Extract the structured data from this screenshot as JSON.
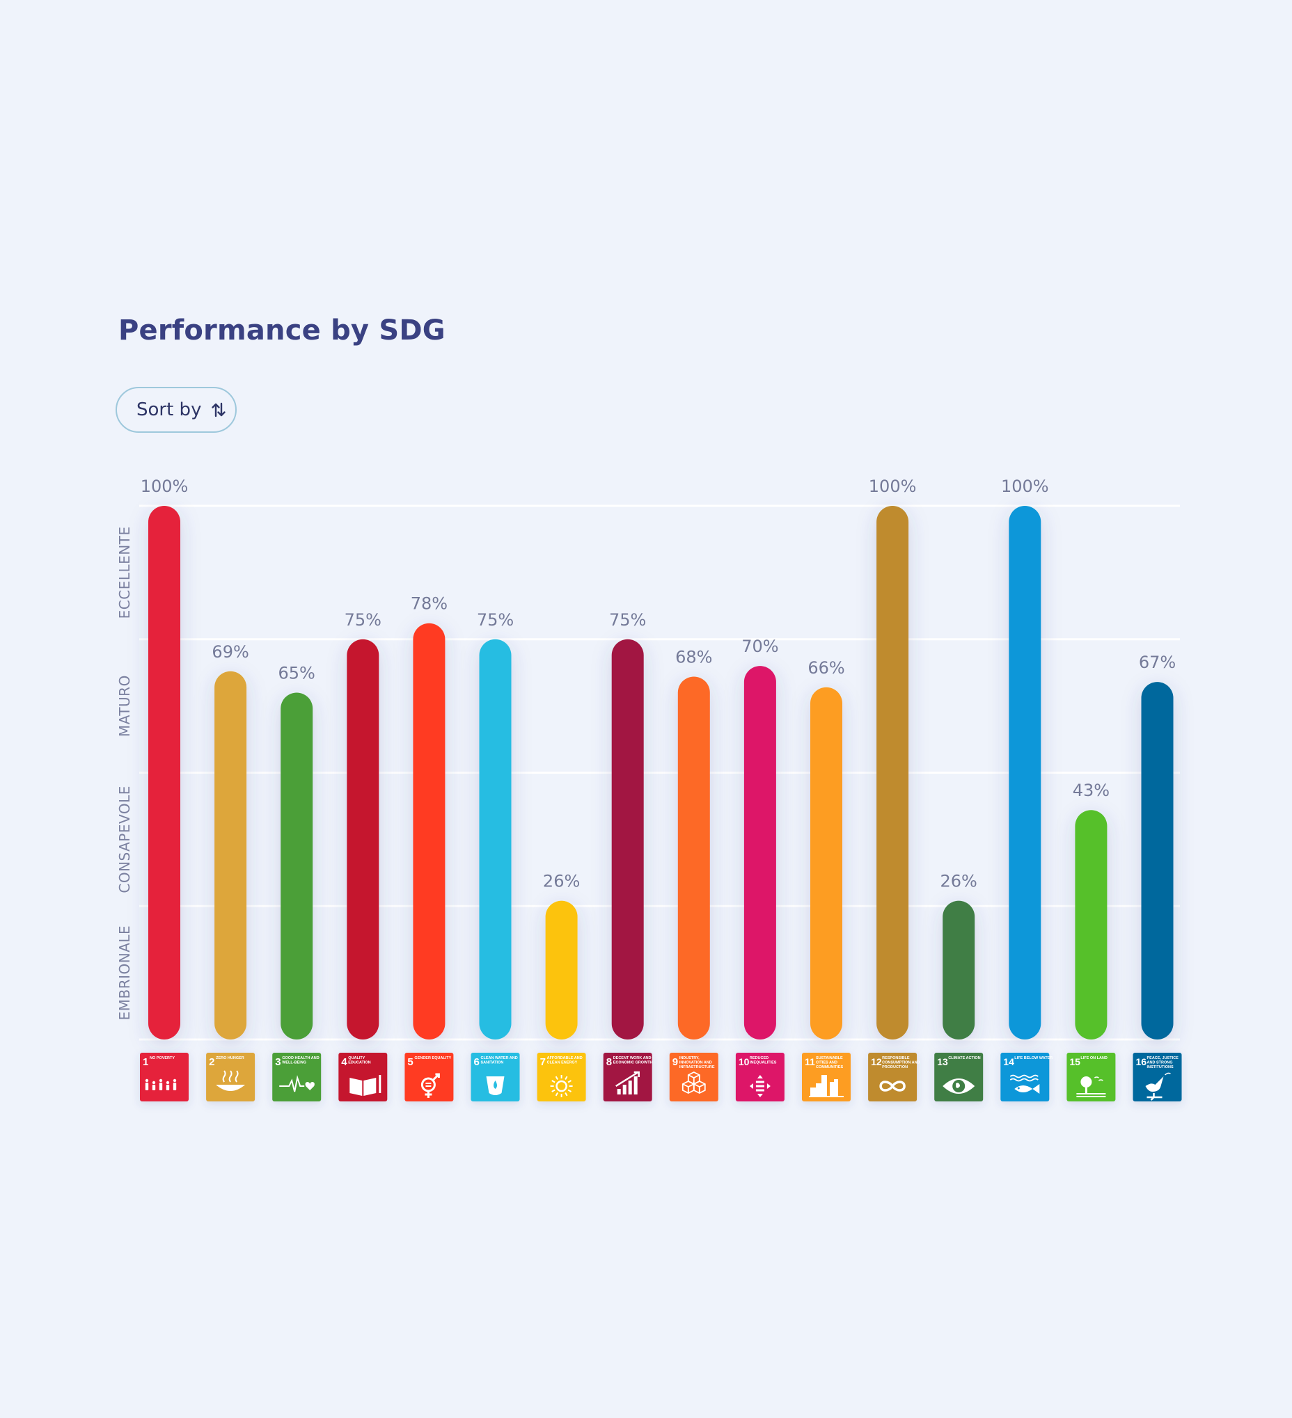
{
  "header": {
    "title": "Performance by SDG"
  },
  "toolbar": {
    "sort_label": "Sort by",
    "sort_icon": "sort-arrows-icon"
  },
  "chart_data": {
    "type": "bar",
    "title": "Performance by SDG",
    "xlabel": "",
    "ylabel": "",
    "ylim": [
      0,
      100
    ],
    "grid": true,
    "y_levels": [
      "EMBRIONALE",
      "CONSAPEVOLE",
      "MATURO",
      "ECCELLENTE"
    ],
    "categories": [
      {
        "num": "1",
        "name": "NO POVERTY",
        "color": "#e5243b",
        "icon": "family-icon"
      },
      {
        "num": "2",
        "name": "ZERO HUNGER",
        "color": "#dda63a",
        "icon": "bowl-icon"
      },
      {
        "num": "3",
        "name": "GOOD HEALTH AND WELL-BEING",
        "color": "#4c9f38",
        "icon": "heartbeat-icon"
      },
      {
        "num": "4",
        "name": "QUALITY EDUCATION",
        "color": "#c5192d",
        "icon": "book-icon"
      },
      {
        "num": "5",
        "name": "GENDER EQUALITY",
        "color": "#ff3a21",
        "icon": "gender-icon"
      },
      {
        "num": "6",
        "name": "CLEAN WATER AND SANITATION",
        "color": "#26bde2",
        "icon": "water-icon"
      },
      {
        "num": "7",
        "name": "AFFORDABLE AND CLEAN ENERGY",
        "color": "#fcc30b",
        "icon": "sun-icon"
      },
      {
        "num": "8",
        "name": "DECENT WORK AND ECONOMIC GROWTH",
        "color": "#a21942",
        "icon": "growth-icon"
      },
      {
        "num": "9",
        "name": "INDUSTRY, INNOVATION AND INFRASTRUCTURE",
        "color": "#fd6925",
        "icon": "cubes-icon"
      },
      {
        "num": "10",
        "name": "REDUCED INEQUALITIES",
        "color": "#dd1367",
        "icon": "equality-icon"
      },
      {
        "num": "11",
        "name": "SUSTAINABLE CITIES AND COMMUNITIES",
        "color": "#fd9d24",
        "icon": "city-icon"
      },
      {
        "num": "12",
        "name": "RESPONSIBLE CONSUMPTION AND PRODUCTION",
        "color": "#bf8b2e",
        "icon": "infinity-icon"
      },
      {
        "num": "13",
        "name": "CLIMATE ACTION",
        "color": "#3f7e44",
        "icon": "eye-globe-icon"
      },
      {
        "num": "14",
        "name": "LIFE BELOW WATER",
        "color": "#0a97d9",
        "icon": "fish-icon"
      },
      {
        "num": "15",
        "name": "LIFE ON LAND",
        "color": "#56c02b",
        "icon": "tree-icon"
      },
      {
        "num": "16",
        "name": "PEACE, JUSTICE AND STRONG INSTITUTIONS",
        "color": "#00689d",
        "icon": "dove-icon"
      }
    ],
    "values": [
      100,
      69,
      65,
      75,
      78,
      75,
      26,
      75,
      68,
      70,
      66,
      100,
      26,
      100,
      43,
      67
    ],
    "value_labels": [
      "100%",
      "69%",
      "65%",
      "75%",
      "78%",
      "75%",
      "26%",
      "75%",
      "68%",
      "70%",
      "66%",
      "100%",
      "26%",
      "100%",
      "43%",
      "67%"
    ]
  }
}
